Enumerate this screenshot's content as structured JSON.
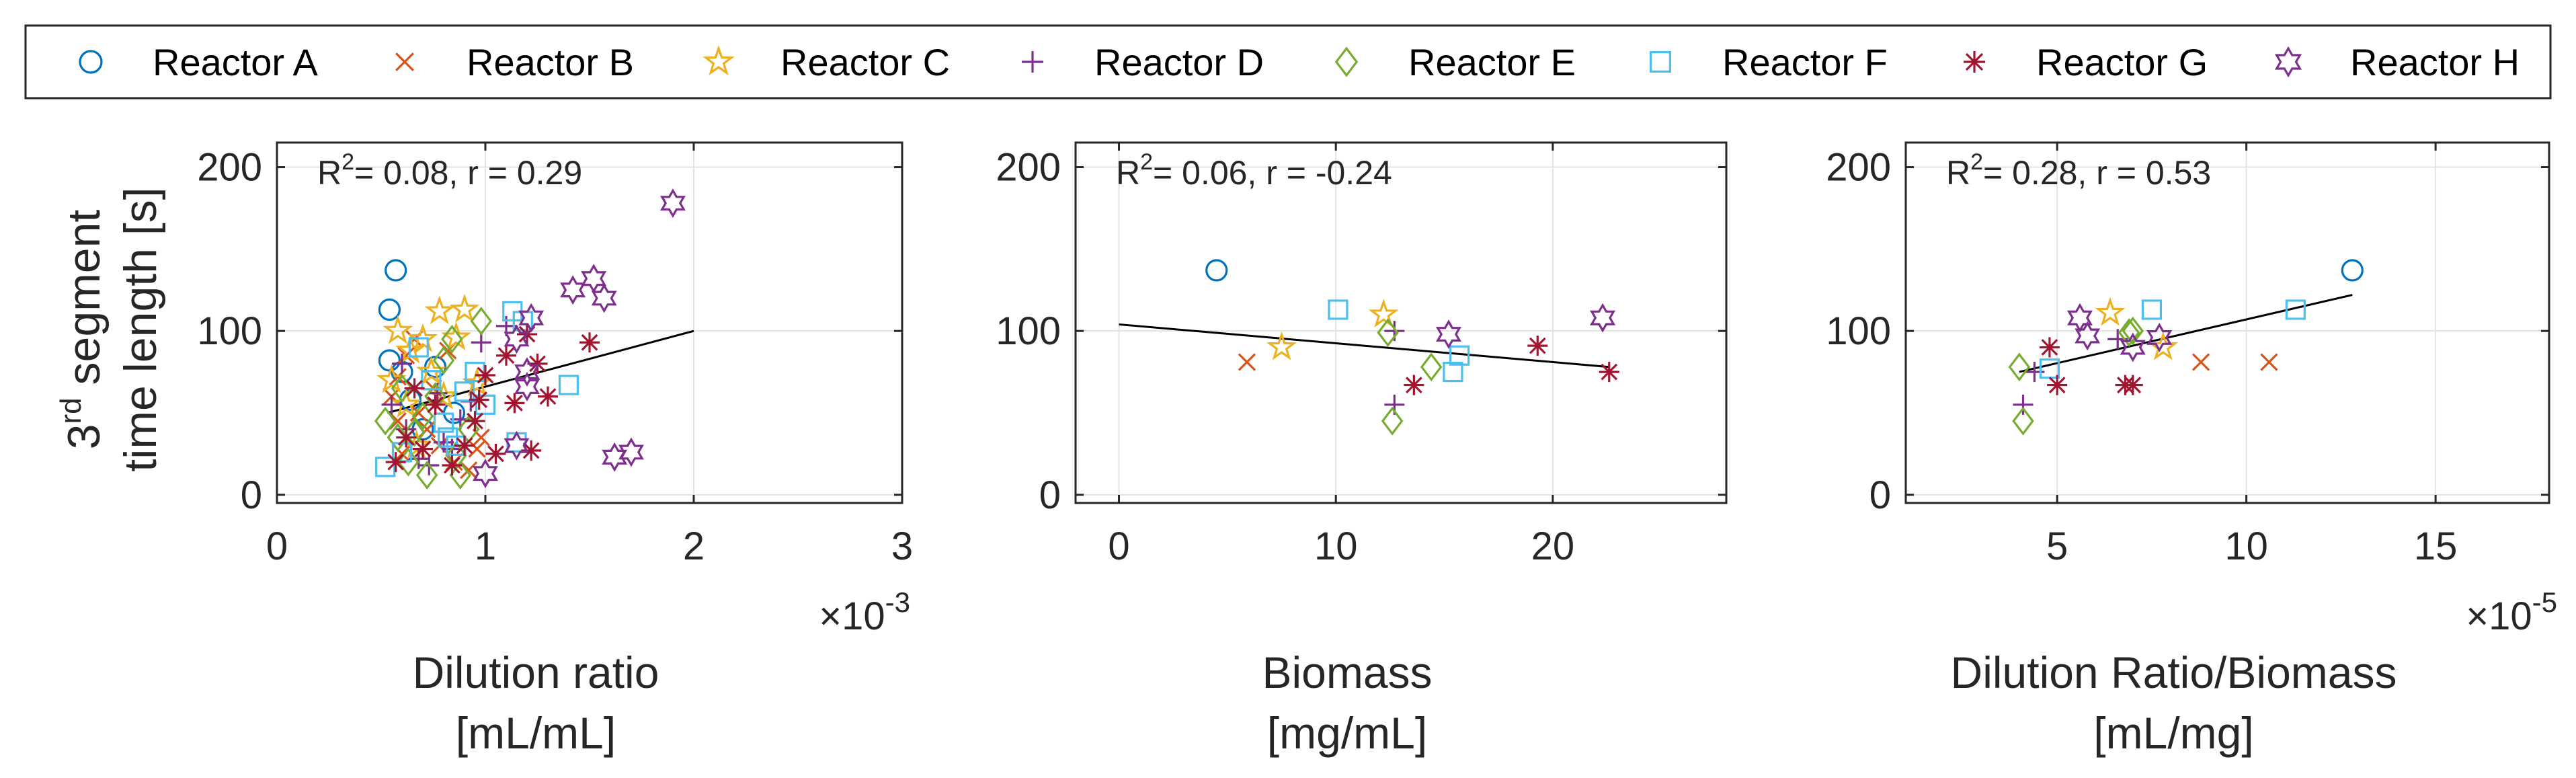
{
  "legend": {
    "placement": "top",
    "entries": [
      {
        "name": "Reactor A",
        "color": "#0072BD",
        "marker": "circle"
      },
      {
        "name": "Reactor B",
        "color": "#D95319",
        "marker": "x"
      },
      {
        "name": "Reactor C",
        "color": "#EDB120",
        "marker": "pentagram"
      },
      {
        "name": "Reactor D",
        "color": "#7E2F8E",
        "marker": "plus"
      },
      {
        "name": "Reactor E",
        "color": "#77AC30",
        "marker": "diamond"
      },
      {
        "name": "Reactor F",
        "color": "#4DBEEE",
        "marker": "square"
      },
      {
        "name": "Reactor G",
        "color": "#A2142F",
        "marker": "asterisk"
      },
      {
        "name": "Reactor H",
        "color": "#7E2F8E",
        "marker": "hexagram"
      }
    ]
  },
  "ylabel_line1": "3",
  "ylabel_sup": "rd",
  "ylabel_line1_rest": " segment",
  "ylabel_line2": "time length [s]",
  "chart_data": [
    {
      "type": "scatter",
      "annotation": {
        "r2_prefix": "R",
        "r2_sup": "2",
        "text": "= 0.08, r = 0.29"
      },
      "xlabel_line1": "Dilution ratio",
      "xlabel_line2": "[mL/mL]",
      "exponent": {
        "prefix": "×10",
        "power": "-3"
      },
      "xlim": [
        0,
        3
      ],
      "ylim": [
        -5,
        215
      ],
      "xticks": [
        0,
        1,
        2,
        3
      ],
      "xtick_labels": [
        "0",
        "1",
        "2",
        "3"
      ],
      "yticks": [
        0,
        100,
        200
      ],
      "ytick_labels": [
        "0",
        "100",
        "200"
      ],
      "grid": true,
      "fit_line": {
        "x": [
          0.53,
          2.0
        ],
        "y": [
          50,
          100
        ]
      },
      "series": [
        {
          "name": "Reactor A",
          "points": [
            [
              0.57,
              137
            ],
            [
              0.54,
              113
            ],
            [
              0.54,
              82
            ],
            [
              0.6,
              75
            ],
            [
              0.64,
              58
            ],
            [
              0.7,
              40
            ],
            [
              0.76,
              78
            ],
            [
              0.85,
              50
            ]
          ]
        },
        {
          "name": "Reactor B",
          "points": [
            [
              0.55,
              60
            ],
            [
              0.58,
              72
            ],
            [
              0.62,
              85
            ],
            [
              0.66,
              95
            ],
            [
              0.72,
              40
            ],
            [
              0.78,
              30
            ],
            [
              0.85,
              20
            ],
            [
              0.92,
              15
            ],
            [
              0.96,
              28
            ],
            [
              0.6,
              25
            ],
            [
              0.68,
              50
            ],
            [
              0.75,
              65
            ],
            [
              0.82,
              88
            ],
            [
              0.58,
              45
            ],
            [
              0.98,
              35
            ]
          ]
        },
        {
          "name": "Reactor C",
          "points": [
            [
              0.58,
              100
            ],
            [
              0.64,
              88
            ],
            [
              0.7,
              95
            ],
            [
              0.78,
              112
            ],
            [
              0.9,
              113
            ],
            [
              0.55,
              70
            ],
            [
              0.62,
              55
            ],
            [
              0.74,
              75
            ],
            [
              0.8,
              60
            ],
            [
              0.67,
              30
            ],
            [
              0.86,
              96
            ],
            [
              0.96,
              68
            ]
          ]
        },
        {
          "name": "Reactor D",
          "points": [
            [
              0.55,
              55
            ],
            [
              0.62,
              40
            ],
            [
              0.68,
              22
            ],
            [
              0.73,
              18
            ],
            [
              0.8,
              32
            ],
            [
              0.88,
              46
            ],
            [
              0.93,
              57
            ],
            [
              0.98,
              93
            ],
            [
              0.6,
              80
            ],
            [
              0.77,
              62
            ],
            [
              1.1,
              103
            ],
            [
              0.84,
              28
            ]
          ]
        },
        {
          "name": "Reactor E",
          "points": [
            [
              0.52,
              45
            ],
            [
              0.58,
              35
            ],
            [
              0.63,
              20
            ],
            [
              0.66,
              38
            ],
            [
              0.72,
              12
            ],
            [
              0.76,
              60
            ],
            [
              0.84,
              95
            ],
            [
              0.88,
              12
            ],
            [
              0.92,
              40
            ],
            [
              0.98,
              106
            ],
            [
              0.7,
              48
            ],
            [
              0.8,
              82
            ],
            [
              0.6,
              65
            ],
            [
              0.86,
              24
            ]
          ]
        },
        {
          "name": "Reactor F",
          "points": [
            [
              0.52,
              17
            ],
            [
              0.6,
              26
            ],
            [
              0.68,
              90
            ],
            [
              0.74,
              70
            ],
            [
              0.82,
              35
            ],
            [
              0.86,
              30
            ],
            [
              0.9,
              63
            ],
            [
              0.95,
              75
            ],
            [
              1.0,
              55
            ],
            [
              1.13,
              112
            ],
            [
              1.15,
              32
            ],
            [
              1.18,
              106
            ],
            [
              1.4,
              67
            ],
            [
              0.8,
              44
            ]
          ]
        },
        {
          "name": "Reactor G",
          "points": [
            [
              0.57,
              20
            ],
            [
              0.62,
              35
            ],
            [
              0.66,
              65
            ],
            [
              0.7,
              28
            ],
            [
              0.76,
              55
            ],
            [
              0.84,
              18
            ],
            [
              0.9,
              30
            ],
            [
              0.95,
              45
            ],
            [
              1.0,
              73
            ],
            [
              1.05,
              25
            ],
            [
              1.1,
              85
            ],
            [
              1.14,
              56
            ],
            [
              1.2,
              98
            ],
            [
              1.25,
              80
            ],
            [
              1.3,
              60
            ],
            [
              1.22,
              27
            ],
            [
              1.5,
              93
            ],
            [
              0.97,
              58
            ]
          ]
        },
        {
          "name": "Reactor H",
          "points": [
            [
              1.9,
              178
            ],
            [
              1.52,
              132
            ],
            [
              1.57,
              120
            ],
            [
              1.42,
              125
            ],
            [
              1.22,
              108
            ],
            [
              1.15,
              95
            ],
            [
              1.2,
              75
            ],
            [
              1.62,
              23
            ],
            [
              1.7,
              26
            ],
            [
              1.15,
              30
            ],
            [
              1.0,
              13
            ],
            [
              1.2,
              66
            ]
          ]
        }
      ]
    },
    {
      "type": "scatter",
      "annotation": {
        "r2_prefix": "R",
        "r2_sup": "2",
        "text": "= 0.06, r = -0.24"
      },
      "xlabel_line1": "Biomass",
      "xlabel_line2": "[mg/mL]",
      "xlim": [
        -2,
        28
      ],
      "ylim": [
        -5,
        215
      ],
      "xticks": [
        0,
        10,
        20
      ],
      "xtick_labels": [
        "0",
        "10",
        "20"
      ],
      "yticks": [
        0,
        100,
        200
      ],
      "ytick_labels": [
        "0",
        "100",
        "200"
      ],
      "grid": true,
      "fit_line": {
        "x": [
          0,
          22.6
        ],
        "y": [
          104,
          78
        ]
      },
      "series": [
        {
          "name": "Reactor A",
          "points": [
            [
              4.5,
              137
            ]
          ]
        },
        {
          "name": "Reactor B",
          "points": [
            [
              5.9,
              81
            ]
          ]
        },
        {
          "name": "Reactor C",
          "points": [
            [
              7.5,
              90
            ],
            [
              12.2,
              110
            ]
          ]
        },
        {
          "name": "Reactor D",
          "points": [
            [
              12.7,
              55
            ],
            [
              12.7,
              100
            ]
          ]
        },
        {
          "name": "Reactor E",
          "points": [
            [
              12.4,
              99
            ],
            [
              12.6,
              45
            ],
            [
              14.4,
              78
            ]
          ]
        },
        {
          "name": "Reactor F",
          "points": [
            [
              10.1,
              113
            ],
            [
              15.4,
              75
            ],
            [
              15.7,
              85
            ]
          ]
        },
        {
          "name": "Reactor G",
          "points": [
            [
              13.6,
              67
            ],
            [
              19.3,
              91
            ],
            [
              22.6,
              75
            ]
          ]
        },
        {
          "name": "Reactor H",
          "points": [
            [
              15.2,
              98
            ],
            [
              22.3,
              108
            ]
          ]
        }
      ]
    },
    {
      "type": "scatter",
      "annotation": {
        "r2_prefix": "R",
        "r2_sup": "2",
        "text": "= 0.28, r = 0.53"
      },
      "xlabel_line1": "Dilution Ratio/Biomass",
      "xlabel_line2": "[mL/mg]",
      "exponent": {
        "prefix": "×10",
        "power": "-5"
      },
      "xlim": [
        1,
        18
      ],
      "ylim": [
        -5,
        215
      ],
      "xticks": [
        5,
        10,
        15
      ],
      "xtick_labels": [
        "5",
        "10",
        "15"
      ],
      "yticks": [
        0,
        100,
        200
      ],
      "ytick_labels": [
        "0",
        "100",
        "200"
      ],
      "grid": true,
      "fit_line": {
        "x": [
          4.0,
          12.8
        ],
        "y": [
          75,
          122
        ]
      },
      "series": [
        {
          "name": "Reactor A",
          "points": [
            [
              12.8,
              137
            ]
          ]
        },
        {
          "name": "Reactor B",
          "points": [
            [
              8.8,
              81
            ],
            [
              10.6,
              81
            ]
          ]
        },
        {
          "name": "Reactor C",
          "points": [
            [
              6.4,
              111
            ],
            [
              7.8,
              90
            ]
          ]
        },
        {
          "name": "Reactor D",
          "points": [
            [
              4.1,
              55
            ],
            [
              4.4,
              75
            ],
            [
              6.6,
              95
            ]
          ]
        },
        {
          "name": "Reactor E",
          "points": [
            [
              4.1,
              45
            ],
            [
              4.0,
              78
            ],
            [
              6.9,
              99
            ],
            [
              7.0,
              100
            ]
          ]
        },
        {
          "name": "Reactor F",
          "points": [
            [
              4.8,
              77
            ],
            [
              7.5,
              113
            ],
            [
              11.3,
              113
            ]
          ]
        },
        {
          "name": "Reactor G",
          "points": [
            [
              4.8,
              90
            ],
            [
              5.0,
              67
            ],
            [
              6.8,
              67
            ],
            [
              7.0,
              67
            ]
          ]
        },
        {
          "name": "Reactor H",
          "points": [
            [
              5.6,
              108
            ],
            [
              5.8,
              97
            ],
            [
              7.7,
              96
            ],
            [
              7.0,
              90
            ]
          ]
        }
      ]
    }
  ]
}
